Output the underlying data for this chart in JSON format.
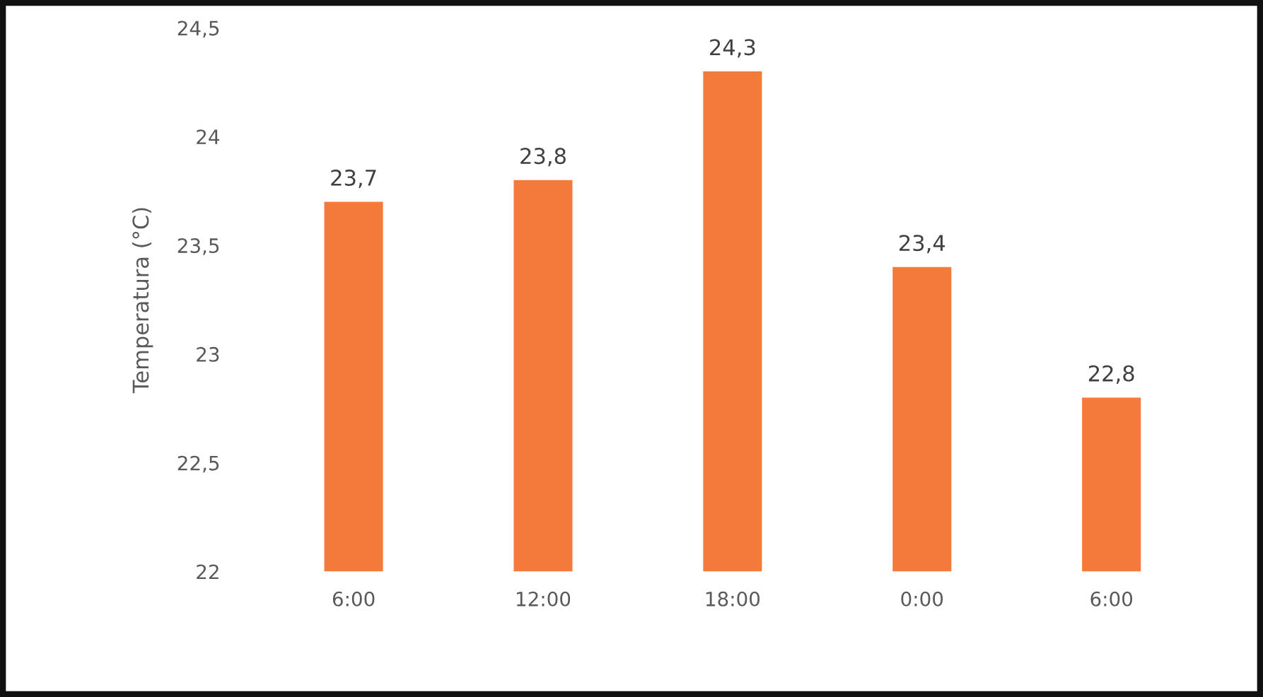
{
  "chart_data": {
    "type": "bar",
    "ylabel": "Temperatura (°C)",
    "categories": [
      "6:00",
      "12:00",
      "18:00",
      "0:00",
      "6:00"
    ],
    "values": [
      23.7,
      23.8,
      24.3,
      23.4,
      22.8
    ],
    "value_labels": [
      "23,7",
      "23,8",
      "24,3",
      "23,4",
      "22,8"
    ],
    "color": "#f47a3c",
    "ylim": [
      22,
      24.5
    ],
    "yticks": [
      22,
      {
        "value": 22.5,
        "label": "22,5"
      },
      23,
      {
        "value": 23.5,
        "label": "23,5"
      },
      24,
      {
        "value": 24.5,
        "label": "24,5"
      }
    ],
    "grid": false
  }
}
